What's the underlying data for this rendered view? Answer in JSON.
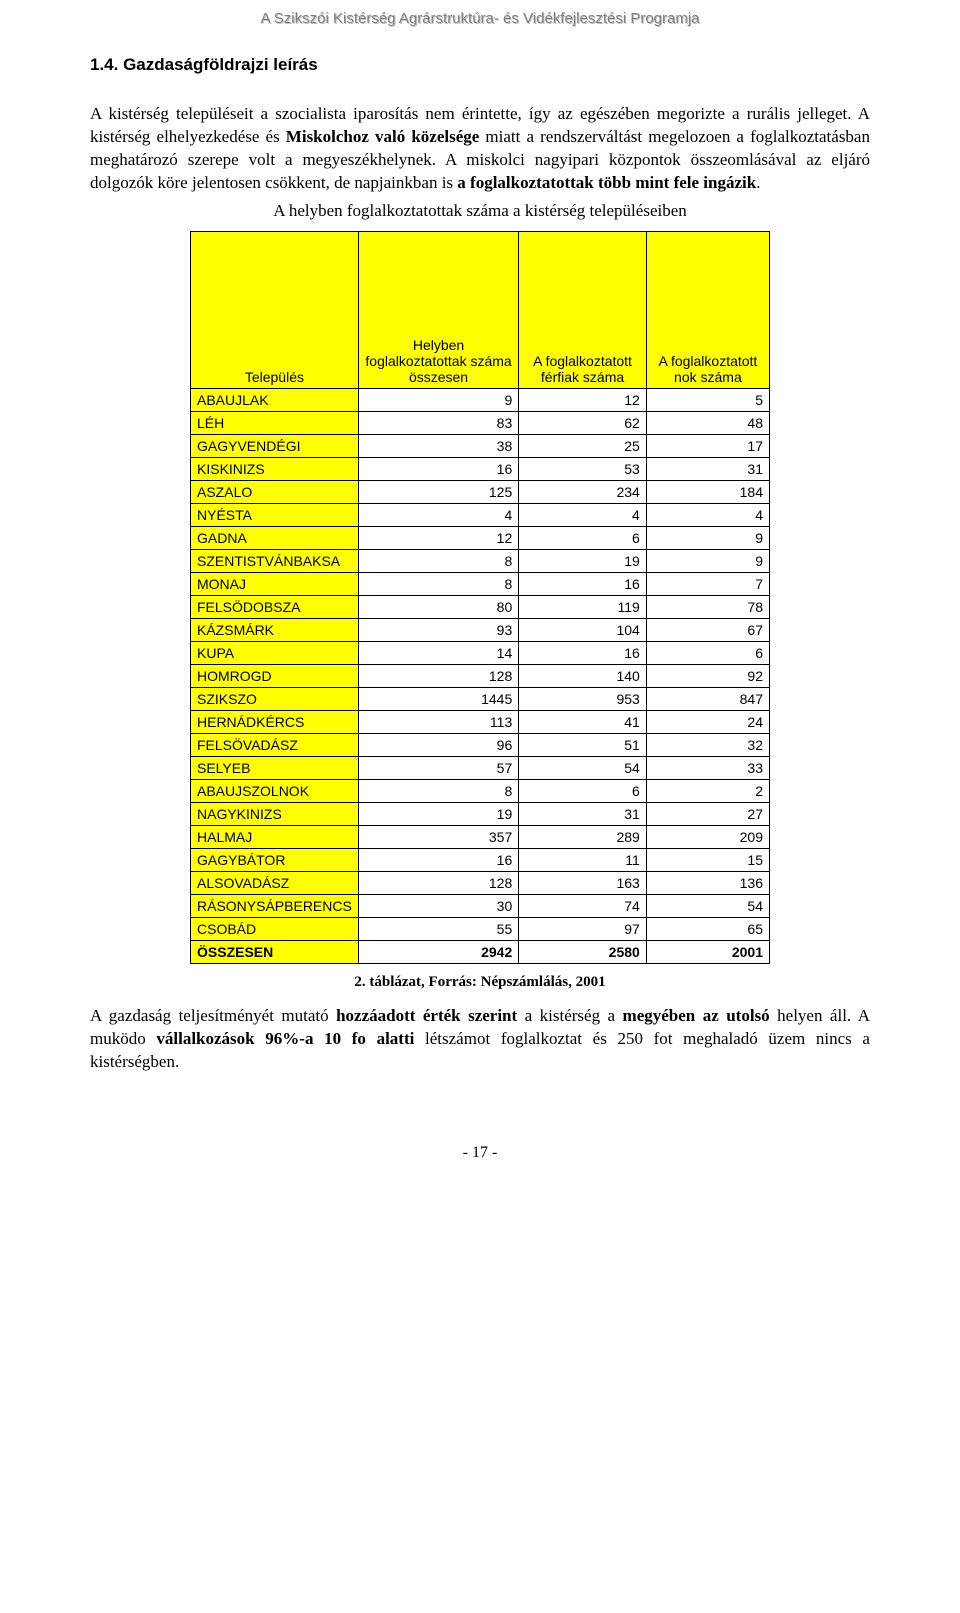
{
  "doc_header": "A Szikszói Kistérség Agrárstruktúra- és Vidékfejlesztési Programja",
  "section_heading": "1.4. Gazdaságföldrajzi leírás",
  "para1_a": "A kistérség településeit a szocialista iparosítás nem érintette, így az egészében megorizte a rurális jelleget. A kistérség elhelyezkedése és ",
  "para1_b": "Miskolchoz való közelsége",
  "para1_c": " miatt a rendszerváltást megelozoen a foglalkoztatásban meghatározó szerepe volt a megyeszékhelynek. A miskolci nagyipari központok összeomlásával az eljáró dolgozók köre jelentosen csökkent, de napjainkban is ",
  "para1_d": "a foglalkoztatottak több mint fele ingázik",
  "para1_e": ".",
  "table_title": "A helyben foglalkoztatottak száma a kistérség településeiben",
  "columns": {
    "settlement": "Település",
    "employed_local": "Helyben foglalkoztatottak száma összesen",
    "employed_men": "A foglalkoztatott férfiak száma",
    "employed_women": "A foglalkoztatott nok száma"
  },
  "rows": [
    {
      "name": "ABAUJLAK",
      "c1": "9",
      "c2": "12",
      "c3": "5"
    },
    {
      "name": "LÉH",
      "c1": "83",
      "c2": "62",
      "c3": "48"
    },
    {
      "name": "GAGYVENDÉGI",
      "c1": "38",
      "c2": "25",
      "c3": "17"
    },
    {
      "name": "KISKINIZS",
      "c1": "16",
      "c2": "53",
      "c3": "31"
    },
    {
      "name": "ASZALO",
      "c1": "125",
      "c2": "234",
      "c3": "184"
    },
    {
      "name": "NYÉSTA",
      "c1": "4",
      "c2": "4",
      "c3": "4"
    },
    {
      "name": "GADNA",
      "c1": "12",
      "c2": "6",
      "c3": "9"
    },
    {
      "name": "SZENTISTVÁNBAKSA",
      "c1": "8",
      "c2": "19",
      "c3": "9"
    },
    {
      "name": "MONAJ",
      "c1": "8",
      "c2": "16",
      "c3": "7"
    },
    {
      "name": "FELSÖDOBSZA",
      "c1": "80",
      "c2": "119",
      "c3": "78"
    },
    {
      "name": "KÁZSMÁRK",
      "c1": "93",
      "c2": "104",
      "c3": "67"
    },
    {
      "name": "KUPA",
      "c1": "14",
      "c2": "16",
      "c3": "6"
    },
    {
      "name": "HOMROGD",
      "c1": "128",
      "c2": "140",
      "c3": "92"
    },
    {
      "name": "SZIKSZO",
      "c1": "1445",
      "c2": "953",
      "c3": "847"
    },
    {
      "name": "HERNÁDKÉRCS",
      "c1": "113",
      "c2": "41",
      "c3": "24"
    },
    {
      "name": "FELSÖVADÁSZ",
      "c1": "96",
      "c2": "51",
      "c3": "32"
    },
    {
      "name": "SELYEB",
      "c1": "57",
      "c2": "54",
      "c3": "33"
    },
    {
      "name": "ABAUJSZOLNOK",
      "c1": "8",
      "c2": "6",
      "c3": "2"
    },
    {
      "name": "NAGYKINIZS",
      "c1": "19",
      "c2": "31",
      "c3": "27"
    },
    {
      "name": "HALMAJ",
      "c1": "357",
      "c2": "289",
      "c3": "209"
    },
    {
      "name": "GAGYBÁTOR",
      "c1": "16",
      "c2": "11",
      "c3": "15"
    },
    {
      "name": "ALSOVADÁSZ",
      "c1": "128",
      "c2": "163",
      "c3": "136"
    },
    {
      "name": "RÁSONYSÁPBERENCS",
      "c1": "30",
      "c2": "74",
      "c3": "54"
    },
    {
      "name": "CSOBÁD",
      "c1": "55",
      "c2": "97",
      "c3": "65"
    }
  ],
  "total_row": {
    "name": "ÖSSZESEN",
    "c1": "2942",
    "c2": "2580",
    "c3": "2001"
  },
  "table_caption": "2. táblázat, Forrás: Népszámlálás, 2001",
  "para2_a": "A gazdaság teljesítményét mutató ",
  "para2_b": "hozzáadott érték szerint",
  "para2_c": " a kistérség a ",
  "para2_d": "megyében az utolsó",
  "para2_e": " helyen áll. A muködo ",
  "para2_f": "vállalkozások 96%-a 10 fo alatti",
  "para2_g": " létszámot foglalkoztat és 250 fot meghaladó üzem nincs a kistérségben.",
  "page_number": "- 17 -",
  "style": {
    "header_row_bg": "#ffff00",
    "settlement_col_bg": "#ffff00",
    "border_color": "#000000",
    "body_font": "Times New Roman",
    "table_font": "Arial",
    "col_widths": {
      "settlement": "200px",
      "c1": "130px",
      "c2": "125px",
      "c3": "125px"
    }
  }
}
